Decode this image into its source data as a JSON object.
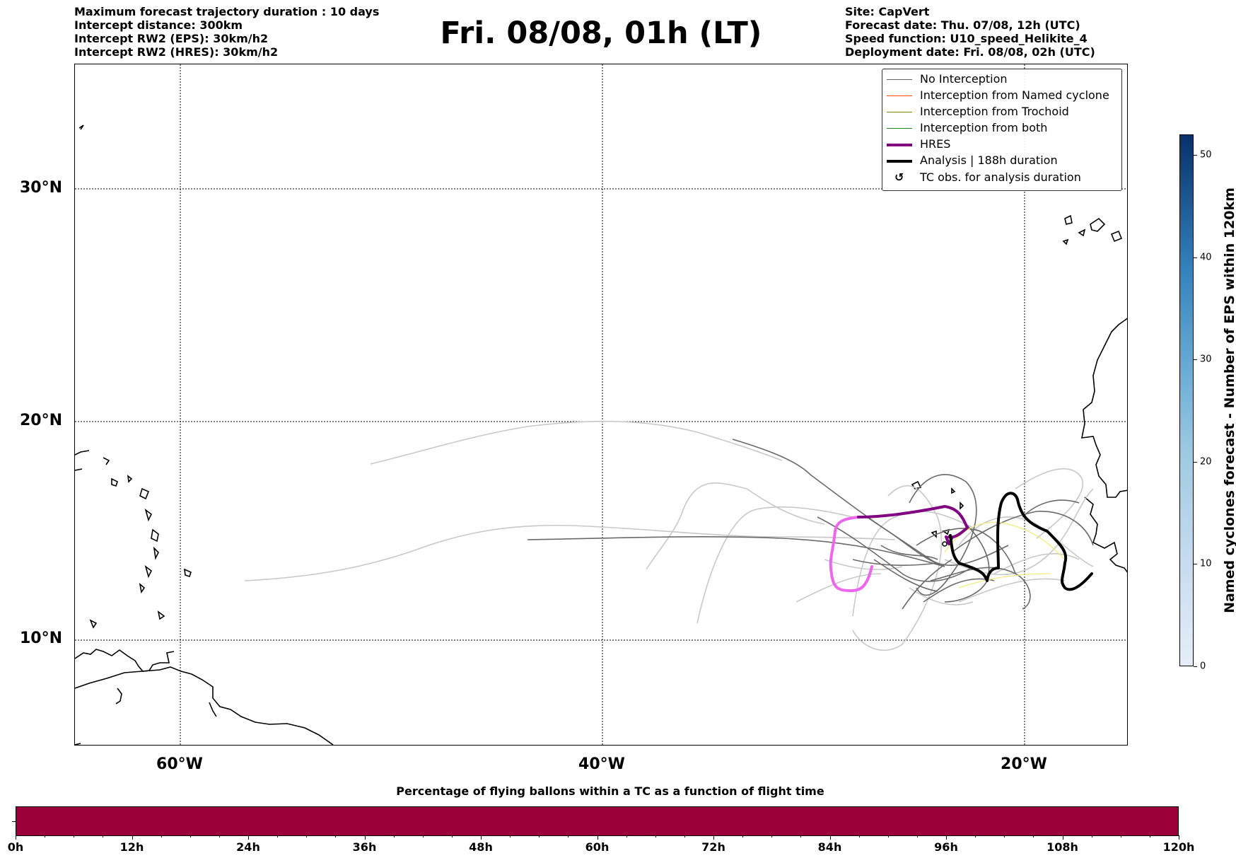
{
  "header": {
    "title": "Fri. 08/08, 01h (LT)",
    "left_lines": [
      "Maximum forecast trajectory duration : 10 days",
      "Intercept distance: 300km",
      "Intercept RW2 (EPS):  30km/h2",
      "Intercept RW2 (HRES): 30km/h2"
    ],
    "right_lines": [
      "Site: CapVert",
      "Forecast date: Thu. 07/08, 12h (UTC)",
      "Speed function: U10_speed_Helikite_4",
      "Deployment date: Fri. 08/08, 02h (UTC)"
    ]
  },
  "map": {
    "lat_labels": [
      "30°N",
      "20°N",
      "10°N"
    ],
    "lon_labels": [
      "60°W",
      "40°W",
      "20°W"
    ]
  },
  "legend": {
    "items": [
      {
        "label": "No Interception",
        "color": "#666666",
        "style": "thin"
      },
      {
        "label": "Interception from Named cyclone",
        "color": "#ff4500",
        "style": "thin"
      },
      {
        "label": "Interception from Trochoid",
        "color": "#808000",
        "style": "thin"
      },
      {
        "label": "Interception from both",
        "color": "#228b22",
        "style": "thin"
      },
      {
        "label": "HRES",
        "color": "#800080",
        "style": "thick"
      },
      {
        "label": "Analysis | 188h duration",
        "color": "#000000",
        "style": "thick"
      },
      {
        "label": "TC obs. for analysis duration",
        "color": "#000000",
        "style": "marker",
        "marker": "↺"
      }
    ]
  },
  "colorbar": {
    "title": "Named cyclones forecast - Number of EPS within 120km",
    "ticks": [
      "0",
      "10",
      "20",
      "30",
      "40",
      "50"
    ],
    "max": 52
  },
  "flight_time_bar": {
    "title": "Percentage of flying ballons within a TC as a function of flight time",
    "labels": [
      "0h",
      "12h",
      "24h",
      "36h",
      "48h",
      "60h",
      "72h",
      "84h",
      "96h",
      "108h",
      "120h"
    ],
    "fill_color": "#9b003a"
  }
}
